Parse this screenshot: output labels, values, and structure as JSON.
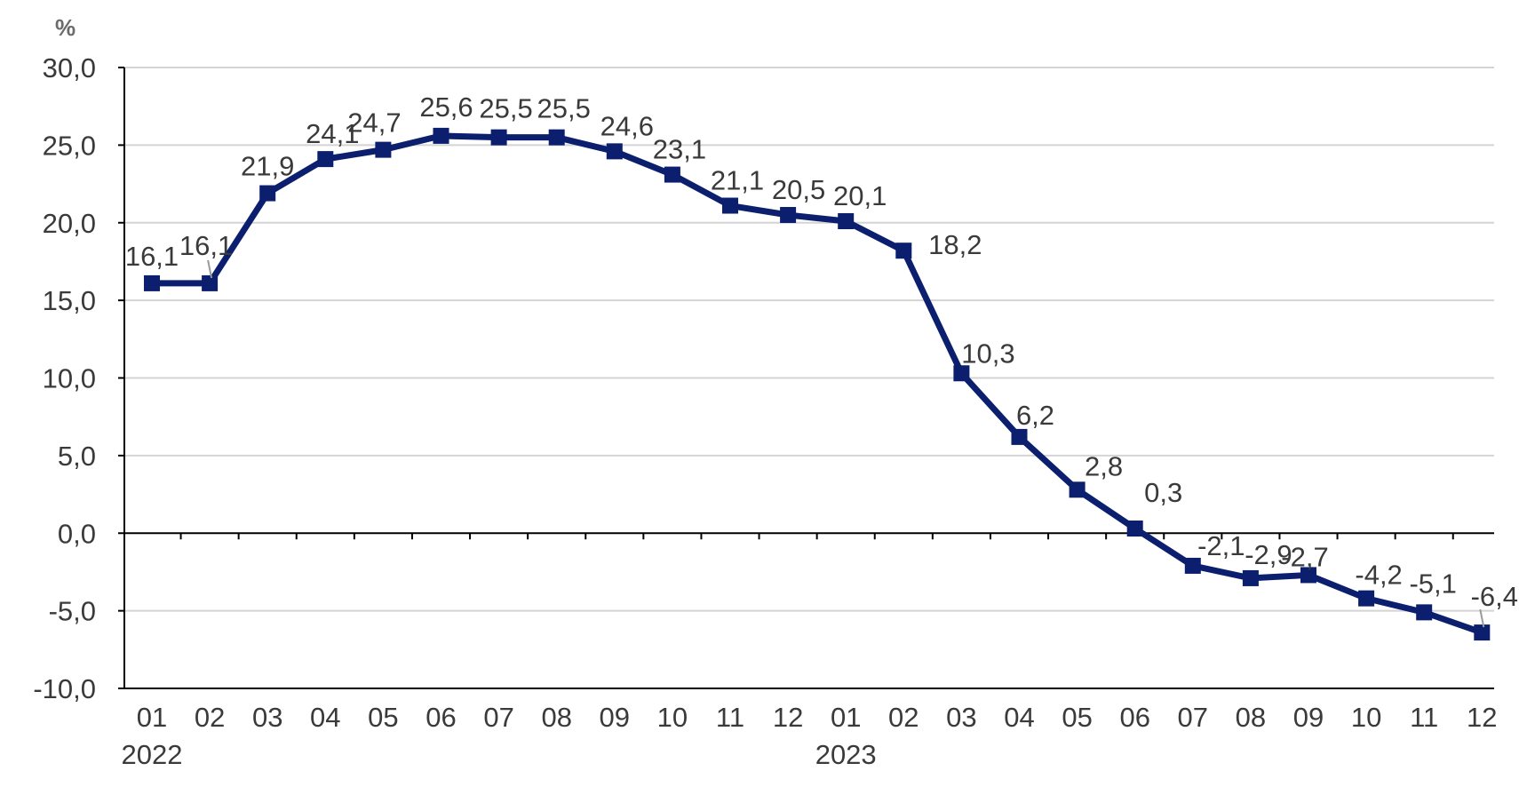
{
  "chart_data": {
    "type": "line",
    "unit_label": "%",
    "x": [
      "01",
      "02",
      "03",
      "04",
      "05",
      "06",
      "07",
      "08",
      "09",
      "10",
      "11",
      "12",
      "01",
      "02",
      "03",
      "04",
      "05",
      "06",
      "07",
      "08",
      "09",
      "10",
      "11",
      "12"
    ],
    "year_labels": [
      {
        "index": 0,
        "label": "2022"
      },
      {
        "index": 12,
        "label": "2023"
      }
    ],
    "series": [
      {
        "values": [
          16.1,
          16.1,
          21.9,
          24.1,
          24.7,
          25.6,
          25.5,
          25.5,
          24.6,
          23.1,
          21.1,
          20.5,
          20.1,
          18.2,
          10.3,
          6.2,
          2.8,
          0.3,
          -2.1,
          -2.9,
          -2.7,
          -4.2,
          -5.1,
          -6.4
        ],
        "labels": [
          "16,1",
          "16,1",
          "21,9",
          "24,1",
          "24,7",
          "25,6",
          "25,5",
          "25,5",
          "24,6",
          "23,1",
          "21,1",
          "20,5",
          "20,1",
          "18,2",
          "10,3",
          "6,2",
          "2,8",
          "0,3",
          "-2,1",
          "-2,9",
          "-2,7",
          "-4,2",
          "-5,1",
          "-6,4"
        ],
        "color": "#0b1f6e"
      }
    ],
    "ylim": [
      -10,
      30
    ],
    "yticks": [
      30,
      25,
      20,
      15,
      10,
      5,
      0,
      -5,
      -10
    ],
    "ytick_labels": [
      "30,0",
      "25,0",
      "20,0",
      "15,0",
      "10,0",
      "5,0",
      "0,0",
      "-5,0",
      "-10,0"
    ],
    "grid": true,
    "colors": {
      "line": "#0b1f6e",
      "grid": "#d4d4d4",
      "axis": "#000000",
      "text": "#3a3a3a"
    }
  }
}
